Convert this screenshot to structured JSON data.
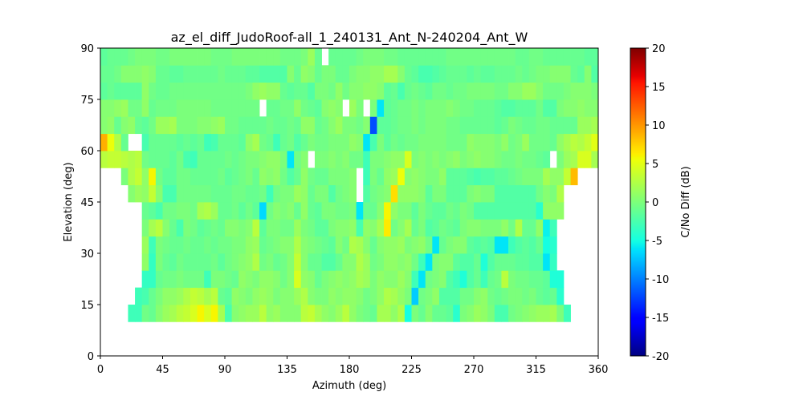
{
  "chart_data": {
    "type": "heatmap",
    "title": "az_el_diff_JudoRoof-all_1_240131_Ant_N-240204_Ant_W",
    "xlabel": "Azimuth (deg)",
    "ylabel": "Elevation (deg)",
    "xlim": [
      0,
      360
    ],
    "ylim": [
      0,
      90
    ],
    "xticks": [
      "0",
      "45",
      "90",
      "135",
      "180",
      "225",
      "270",
      "315",
      "360"
    ],
    "yticks": [
      "0",
      "15",
      "30",
      "45",
      "60",
      "75",
      "90"
    ],
    "colorbar": {
      "label": "C/No Diff (dB)",
      "colormap": "jet",
      "range": [
        -20,
        20
      ],
      "ticks": [
        "-20",
        "-15",
        "-10",
        "-5",
        "0",
        "5",
        "10",
        "15",
        "20"
      ]
    },
    "azimuth_bin_width": 5,
    "elevation_bin_width": 5,
    "elevation_bins": [
      10,
      15,
      20,
      25,
      30,
      35,
      40,
      45,
      50,
      55,
      60,
      65,
      70,
      75,
      80,
      85
    ],
    "values": [
      [
        null,
        null,
        null,
        null,
        -3,
        -3,
        -0.5,
        -1,
        0.5,
        1.5,
        2,
        3,
        3.5,
        4.5,
        6,
        4.5,
        6,
        2,
        -2.5,
        0.5,
        1,
        1.5,
        1.5,
        3,
        1,
        1.5,
        0.5,
        0.5,
        0.5,
        3,
        3.5,
        2,
        1,
        0.5,
        1.5,
        3,
        1,
        0,
        -0.5,
        -1,
        2,
        2,
        1,
        2.5,
        -5,
        0,
        -1,
        0.5,
        -1,
        -1,
        -1.5,
        -4,
        0,
        0.5,
        1.5,
        1,
        0,
        -2.5,
        -2.5,
        -0.5,
        0,
        0.5,
        1,
        1.5,
        1.5,
        2,
        0,
        -3,
        null,
        null,
        null,
        null
      ],
      [
        null,
        null,
        null,
        null,
        null,
        -3,
        -2.5,
        -1,
        0,
        1,
        1,
        1.5,
        2.5,
        3.5,
        3,
        2,
        3,
        -1,
        -1.5,
        1,
        0.5,
        0,
        1,
        1.5,
        1,
        0,
        0.5,
        0.5,
        1.5,
        2.5,
        0.5,
        0,
        0,
        1,
        0.5,
        1,
        1,
        0.5,
        -0.5,
        0,
        1,
        2.5,
        2,
        1,
        0,
        -7,
        -0.5,
        0,
        1,
        -2,
        -2,
        -2,
        -0.5,
        -0.5,
        0.5,
        1,
        -0.5,
        -1,
        -0.5,
        0,
        0,
        -0.5,
        0,
        -1,
        -1.5,
        -1,
        -4,
        null,
        null,
        null,
        null,
        null
      ],
      [
        null,
        null,
        null,
        null,
        null,
        null,
        -3.5,
        -3.5,
        -1,
        -0.5,
        -0.5,
        0,
        -0.5,
        -0.5,
        -0.5,
        -3,
        0,
        0,
        -0.5,
        -1,
        1,
        0.5,
        0,
        1,
        1,
        0.5,
        -0.5,
        0.5,
        4.5,
        1,
        0.5,
        -1,
        0,
        0.5,
        1,
        0.5,
        1,
        2,
        1.5,
        0,
        1,
        0.5,
        0.5,
        1.5,
        0.5,
        -3,
        -6,
        -0.5,
        0,
        0.5,
        -2,
        -3,
        -4.5,
        -2,
        -1,
        -3,
        -1,
        -0.5,
        3,
        0,
        -0.5,
        -0.5,
        -1,
        -1,
        -1.5,
        -4.5,
        -4.5,
        null,
        null,
        null,
        null,
        null
      ],
      [
        null,
        null,
        null,
        null,
        null,
        null,
        1,
        -3.5,
        0,
        -1,
        -1.5,
        -0.5,
        -1,
        -1,
        -1,
        -1,
        -0.5,
        -1.5,
        -0.5,
        0,
        0.5,
        1,
        2.5,
        -0.5,
        0,
        -1,
        -0.5,
        0.5,
        3.5,
        0.5,
        -1,
        -1,
        -2,
        -2,
        -1,
        0.5,
        0.5,
        2.5,
        1.5,
        -0.5,
        0,
        1,
        1,
        0.5,
        1,
        -0.5,
        -3,
        -6,
        0,
        0.5,
        0.5,
        -1.5,
        -2,
        -2,
        -1,
        -4.5,
        -2,
        -1,
        -1,
        -1,
        -1.5,
        -1.5,
        -2,
        -2,
        -6,
        -3.5,
        null,
        null,
        null,
        null,
        null,
        null
      ],
      [
        null,
        null,
        null,
        null,
        null,
        null,
        1.5,
        -3,
        0,
        -0.5,
        -1,
        -1,
        -0.5,
        -1,
        -1,
        -0.5,
        -1,
        -0.5,
        -0.5,
        0,
        0,
        1,
        1.5,
        -1,
        -0.5,
        0,
        0.5,
        0.5,
        2.5,
        0.5,
        0,
        -0.5,
        -1,
        -1.5,
        0.5,
        -0.5,
        2.5,
        2,
        0.5,
        -1,
        0.5,
        1,
        1,
        1.5,
        0,
        0.5,
        1,
        -0.5,
        -6,
        -1,
        0,
        0.5,
        0.5,
        -1.5,
        -2,
        -1.5,
        -2,
        -6,
        -6,
        -3,
        -2,
        -1.5,
        -2,
        -1,
        -5,
        -4,
        null,
        null,
        null,
        null,
        null,
        null
      ],
      [
        null,
        null,
        null,
        null,
        null,
        null,
        0,
        2,
        3,
        0.5,
        -1,
        -2.5,
        0,
        -0.5,
        -1.5,
        -1,
        -0.5,
        -1,
        0.5,
        0.5,
        0,
        0.5,
        3,
        -1.5,
        0,
        0,
        -0.5,
        -0.5,
        1.5,
        0,
        -0.5,
        -1.5,
        -1.5,
        0,
        0.5,
        0.5,
        1,
        -2.5,
        1,
        0.5,
        2,
        6.5,
        -0.5,
        0.5,
        2,
        -1,
        0,
        -2,
        -1.5,
        -0.5,
        -1,
        -1.5,
        0,
        0.5,
        0.5,
        0,
        0,
        0,
        1,
        -0.5,
        2.5,
        -1,
        -1,
        1,
        -5.5,
        -3,
        null,
        null,
        null,
        null,
        null,
        null
      ],
      [
        null,
        null,
        null,
        null,
        null,
        null,
        -1,
        -1.5,
        -2.5,
        -0.5,
        -0.5,
        0,
        0,
        -0.5,
        2,
        2.5,
        1.5,
        -1,
        -1,
        -0.5,
        -1.5,
        -0.5,
        -1.5,
        -6.5,
        -0.5,
        0.5,
        0,
        0.5,
        -1,
        1,
        -1,
        -1.5,
        0,
        0,
        -0.5,
        -0.5,
        0,
        -6,
        -1,
        -1,
        0.5,
        6,
        1,
        0,
        0,
        -1.5,
        0,
        -1,
        -1.5,
        -1.5,
        -0.5,
        -1,
        0,
        -0.5,
        -2,
        -2,
        -2,
        -2,
        -2,
        -2,
        -2,
        -2,
        -2,
        -4,
        1,
        1,
        1,
        null,
        null,
        null,
        null,
        null
      ],
      [
        null,
        null,
        null,
        null,
        0.5,
        1.5,
        1,
        3.5,
        0.5,
        -2.5,
        -2.5,
        -0.5,
        -0.5,
        -0.5,
        -0.5,
        -0.5,
        -1,
        -1,
        -1,
        -0.5,
        -0.5,
        -1,
        -1,
        -0.5,
        -3,
        -0.5,
        0,
        0,
        1.5,
        1,
        -1,
        0,
        0,
        -2,
        -0.5,
        0,
        0.5,
        null,
        -2,
        -0.5,
        0,
        0.5,
        7,
        1,
        1,
        1,
        0.5,
        -1.5,
        0,
        0,
        -1.5,
        -1.5,
        -1.5,
        0,
        0.5,
        0,
        0,
        -2,
        -2,
        -2,
        -2,
        -2,
        -2,
        -0.5,
        0.5,
        0,
        2.5,
        null,
        null,
        null,
        null,
        null
      ],
      [
        null,
        null,
        null,
        0,
        2.5,
        3.5,
        1,
        6,
        -0.5,
        -1.5,
        -1.5,
        -0.5,
        -0.5,
        -1,
        -1,
        -1,
        -1,
        -0.5,
        -1.5,
        -1,
        -0.5,
        0,
        -1,
        1,
        0.5,
        1,
        -0.5,
        -2,
        -1,
        1,
        -0.5,
        -1,
        -1,
        0,
        0,
        0,
        0.5,
        null,
        -3,
        0,
        -1,
        1,
        1.5,
        5.5,
        0.5,
        1,
        0.5,
        0,
        0,
        1,
        -1.5,
        -1.5,
        -1.5,
        -2,
        -2.5,
        -2,
        -2,
        -1.5,
        -1.5,
        -1,
        -0.5,
        0,
        0,
        0,
        2,
        1,
        1,
        3.5,
        8.5,
        null,
        null,
        null
      ],
      [
        3,
        3.5,
        3.5,
        3,
        2.5,
        3,
        -0.5,
        -1,
        -1,
        -1,
        -1.5,
        -0.5,
        -2.5,
        -3,
        -1,
        -1,
        -1,
        -1,
        -0.5,
        -1,
        -0.5,
        0,
        0,
        0.5,
        1,
        1,
        0,
        -6,
        -0.5,
        0.5,
        null,
        0,
        0,
        0.5,
        0,
        0.5,
        -0.5,
        -0.5,
        -3,
        0,
        0,
        0.5,
        1,
        1,
        4.5,
        0,
        0.5,
        0,
        0.5,
        0,
        0.5,
        1,
        0,
        0.5,
        1,
        0.5,
        0.5,
        0,
        -0.5,
        -0.5,
        0,
        -0.5,
        -0.5,
        -1,
        -1.5,
        null,
        0,
        1.5,
        2,
        4.5,
        4.5,
        2
      ],
      [
        9,
        5.5,
        2.5,
        -1,
        null,
        null,
        -2.5,
        -1,
        -1,
        -1,
        -1,
        -1.5,
        -1,
        -1.5,
        -1,
        -3,
        -2.5,
        -1,
        -1,
        -1,
        -1.5,
        1,
        2,
        -0.5,
        -1,
        -3,
        -1,
        -0.5,
        -2,
        -1,
        0,
        -0.5,
        -0.5,
        0,
        0,
        0,
        1,
        0.5,
        -6,
        -2.5,
        0,
        -1.5,
        -0.5,
        -1,
        -0.5,
        -0.5,
        0,
        0,
        0,
        0,
        -0.5,
        -0.5,
        -0.5,
        1,
        0.5,
        0.5,
        0.5,
        0,
        1,
        -0.5,
        0,
        1.5,
        -0.5,
        -0.5,
        -0.5,
        -1,
        1,
        2,
        3,
        2.5,
        3.5,
        5
      ],
      [
        0.5,
        1,
        -1,
        0.5,
        1,
        -1,
        -1.5,
        -0.5,
        1.5,
        1.5,
        2,
        0,
        0,
        0,
        0.5,
        0.5,
        1,
        1.5,
        -0.5,
        -0.5,
        -1,
        -1,
        -1,
        -1,
        -0.5,
        -1,
        -1,
        -0.5,
        -1,
        1,
        1,
        -1,
        -0.5,
        0.5,
        1.5,
        0,
        0,
        -0.5,
        0.5,
        -12,
        -1.5,
        -1.5,
        -1,
        -0.5,
        -0.5,
        0,
        -0.5,
        0,
        0,
        0,
        -0.5,
        -0.5,
        -1,
        -1,
        -1,
        -1,
        -1,
        -1.5,
        -1,
        0,
        -0.5,
        -1,
        -1,
        -0.5,
        -0.5,
        -1,
        -1,
        -1,
        -1,
        1.5,
        1.5,
        2
      ],
      [
        0.5,
        0.5,
        1,
        1.5,
        -0.5,
        -0.5,
        1,
        -1,
        -0.5,
        -0.5,
        -0.5,
        0,
        0,
        0,
        0,
        0,
        -0.5,
        -0.5,
        -0.5,
        -0.5,
        -0.5,
        -0.5,
        -0.5,
        null,
        -1,
        -1,
        -0.5,
        -0.5,
        1,
        -0.5,
        -1,
        -1.5,
        0.5,
        1,
        0.5,
        null,
        1.5,
        0,
        null,
        0,
        -6,
        -1.5,
        -1,
        -0.5,
        -0.5,
        0,
        -0.5,
        0,
        0,
        0,
        0.5,
        0,
        -0.5,
        -0.5,
        -1,
        -1,
        -1,
        -1.5,
        -2,
        -2,
        -1.5,
        -1.5,
        -1.5,
        -0.5,
        -2,
        -2,
        0,
        0.5,
        0.5,
        1,
        0.5,
        0.5
      ],
      [
        -1.5,
        -1,
        -1.5,
        -1.5,
        -1.5,
        -1.5,
        1,
        -0.5,
        -1,
        -1,
        -0.5,
        -0.5,
        -0.5,
        -0.5,
        -0.5,
        -0.5,
        -0.5,
        -0.5,
        -0.5,
        -0.5,
        -0.5,
        0,
        1,
        1.5,
        1,
        1,
        -1,
        -1.5,
        -1,
        -1,
        -2,
        0,
        0,
        -0.5,
        1,
        -0.5,
        0.5,
        0.5,
        1,
        1,
        0.5,
        -1.5,
        -1,
        -2.5,
        -1,
        -0.5,
        -1,
        -1.5,
        -0.5,
        -0.5,
        -1,
        -0.5,
        -0.5,
        0,
        0,
        0,
        0,
        -0.5,
        -0.5,
        0.5,
        0.5,
        1.5,
        1.5,
        0.5,
        -0.5,
        -0.5,
        -0.5,
        0,
        0.5,
        0.5,
        0.5,
        0
      ],
      [
        -1,
        -1,
        -0.5,
        0.5,
        0.5,
        0.5,
        1,
        0.5,
        -1,
        -1,
        -1.5,
        -1.5,
        -1,
        -1,
        -1,
        -1,
        -1,
        -0.5,
        -1,
        -1,
        -1,
        -1.5,
        -1.5,
        -2,
        -2,
        -2,
        -2,
        0.5,
        -1,
        1,
        0.5,
        -1,
        0,
        0,
        -1,
        -1,
        0,
        0.5,
        0.5,
        1,
        1,
        2,
        2,
        0.5,
        -1,
        -1.5,
        -2.5,
        -2.5,
        -2,
        -1.5,
        -1,
        -1,
        -1,
        -1.5,
        -1,
        -1.5,
        -1.5,
        -1,
        -1,
        -1,
        -0.5,
        -1,
        -0.5,
        0,
        0,
        0.5,
        0.5,
        0.5,
        -1,
        -1.5,
        0.5,
        -2
      ],
      [
        -1.5,
        -1,
        -1,
        -1,
        -0.5,
        0,
        0,
        0,
        -0.5,
        -0.5,
        0,
        0,
        0,
        0,
        0,
        0,
        -0.5,
        -0.5,
        -0.5,
        0,
        0,
        0,
        0,
        0,
        0,
        0,
        -0.5,
        -0.5,
        -0.5,
        0,
        1.5,
        -1,
        null,
        -1,
        -1,
        -1,
        -1,
        -0.5,
        0,
        0,
        0,
        -0.5,
        -0.5,
        -1,
        -1,
        -1,
        -1,
        -1,
        -1,
        -1,
        -0.5,
        -0.5,
        -0.5,
        -0.5,
        -0.5,
        -0.5,
        -0.5,
        -0.5,
        -0.5,
        -0.5,
        -1,
        -1,
        -0.5,
        -0.5,
        -1,
        -1,
        -1,
        -1,
        -1,
        -1,
        -1.5,
        -1.5
      ]
    ]
  }
}
